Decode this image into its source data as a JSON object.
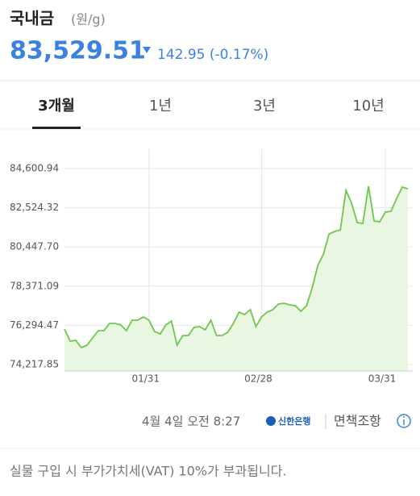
{
  "header": {
    "title": "국내금",
    "unit": "(원/g)",
    "price": "83,529.51",
    "change": "142.95 (-0.17%)"
  },
  "tabs": [
    "3개월",
    "1년",
    "3년",
    "10년"
  ],
  "chart_data": {
    "type": "area",
    "color": "#6cc84a",
    "fill": "#e9f6e2",
    "grid": true,
    "ylim": [
      73876,
      85626
    ],
    "yticks": [
      {
        "value": 74217.85,
        "label": "74,217.85"
      },
      {
        "value": 76294.47,
        "label": "76,294.47"
      },
      {
        "value": 78371.09,
        "label": "78,371.09"
      },
      {
        "value": 80447.7,
        "label": "80,447.70"
      },
      {
        "value": 82524.32,
        "label": "82,524.32"
      },
      {
        "value": 84600.94,
        "label": "84,600.94"
      }
    ],
    "categories": [
      null,
      null,
      null,
      null,
      null,
      null,
      null,
      null,
      null,
      null,
      null,
      null,
      null,
      null,
      null,
      "01/31",
      null,
      null,
      null,
      null,
      null,
      null,
      null,
      null,
      null,
      null,
      null,
      null,
      null,
      null,
      null,
      null,
      null,
      null,
      null,
      "02/28",
      null,
      null,
      null,
      null,
      null,
      null,
      null,
      null,
      null,
      null,
      null,
      null,
      null,
      null,
      null,
      null,
      null,
      null,
      null,
      null,
      null,
      "03/31",
      null,
      null,
      null,
      null
    ],
    "values": [
      76098,
      75457,
      75500,
      75115,
      75244,
      75628,
      76013,
      76013,
      76397,
      76397,
      76312,
      76013,
      76568,
      76568,
      76739,
      76568,
      75970,
      75842,
      76312,
      76525,
      75244,
      75756,
      75756,
      76184,
      76226,
      76055,
      76568,
      75756,
      75756,
      75927,
      76397,
      76995,
      76867,
      77124,
      76226,
      76739,
      76995,
      77124,
      77423,
      77465,
      77380,
      77337,
      77038,
      77337,
      78277,
      79474,
      80072,
      81140,
      81268,
      81354,
      83448,
      82764,
      81738,
      81696,
      83661,
      81824,
      81781,
      82294,
      82337,
      83020,
      83619,
      83529.51
    ]
  },
  "footer": {
    "time": "4월 4일 오전 8:27",
    "bank": "신한은행",
    "disclaimer": "면책조항",
    "note": "실물 구입 시 부가가치세(VAT) 10%가 부과됩니다."
  }
}
